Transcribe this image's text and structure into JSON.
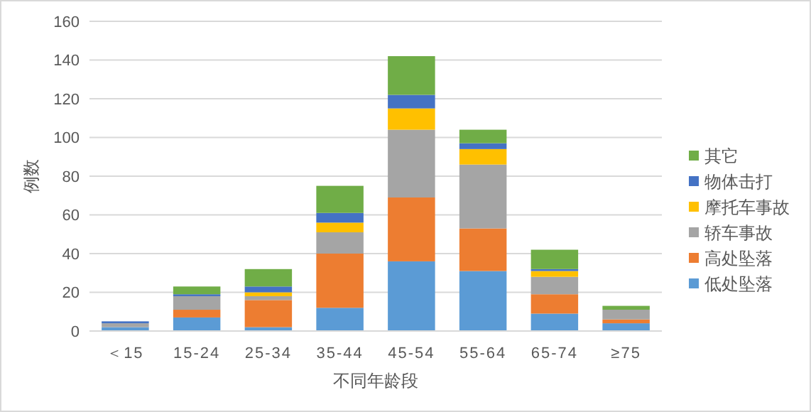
{
  "chart_data": {
    "type": "bar",
    "stacked": true,
    "xlabel": "不同年龄段",
    "ylabel": "例数",
    "categories": [
      "＜15",
      "15-24",
      "25-34",
      "35-44",
      "45-54",
      "55-64",
      "65-74",
      "≥75"
    ],
    "series": [
      {
        "name": "低处坠落",
        "color": "#5b9bd5",
        "values": [
          2,
          7,
          2,
          12,
          36,
          31,
          9,
          4
        ]
      },
      {
        "name": "高处坠落",
        "color": "#ed7d31",
        "values": [
          0,
          4,
          14,
          28,
          33,
          22,
          10,
          2
        ]
      },
      {
        "name": "轿车事故",
        "color": "#a5a5a5",
        "values": [
          2,
          7,
          2,
          11,
          35,
          33,
          9,
          5
        ]
      },
      {
        "name": "摩托车事故",
        "color": "#ffc000",
        "values": [
          0,
          0,
          2,
          5,
          11,
          8,
          3,
          0
        ]
      },
      {
        "name": "物体击打",
        "color": "#4472c4",
        "values": [
          1,
          1,
          3,
          5,
          7,
          3,
          1,
          0
        ]
      },
      {
        "name": "其它",
        "color": "#70ad47",
        "values": [
          0,
          4,
          9,
          14,
          20,
          7,
          10,
          2
        ]
      }
    ],
    "ylim": [
      0,
      160
    ],
    "yticks": [
      0,
      20,
      40,
      60,
      80,
      100,
      120,
      140,
      160
    ],
    "grid": "y",
    "legend": "right"
  }
}
